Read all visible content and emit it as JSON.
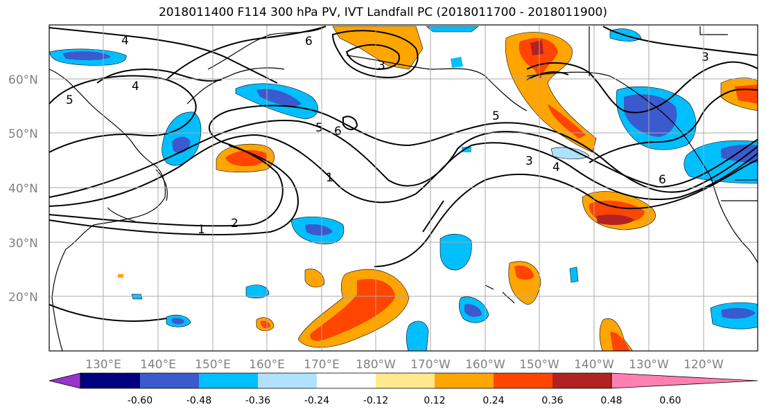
{
  "title": "2018011400 F114 300 hPa PV, IVT Landfall PC (2018011700 - 2018011900)",
  "lat_labels": [
    "60°N",
    "50°N",
    "40°N",
    "30°N",
    "20°N"
  ],
  "lon_labels": [
    "130°E",
    "140°E",
    "150°E",
    "160°E",
    "170°E",
    "180°W",
    "170°W",
    "160°W",
    "150°W",
    "140°W",
    "130°W",
    "120°W"
  ],
  "colorbar": {
    "tick_labels": [
      "-0.60",
      "-0.48",
      "-0.36",
      "-0.24",
      "-0.12",
      "0.12",
      "0.24",
      "0.36",
      "0.48",
      "0.60"
    ],
    "colors": [
      "#9933cc",
      "#000080",
      "#3a5acd",
      "#00bfff",
      "#b0e2ff",
      "#ffffff",
      "#ffe98a",
      "#ffa500",
      "#ff4500",
      "#b22222",
      "#ff80b0"
    ]
  },
  "contour_labels": [
    "4",
    "4",
    "5",
    "6",
    "3",
    "5",
    "6",
    "1",
    "2",
    "1",
    "5",
    "4",
    "3",
    "6",
    "3"
  ]
}
